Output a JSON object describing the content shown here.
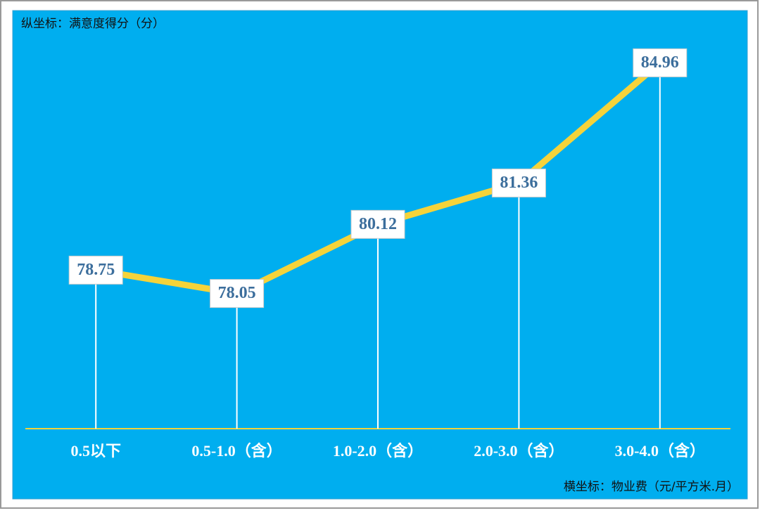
{
  "chart_data": {
    "type": "line",
    "y_axis_label": "纵坐标：满意度得分（分）",
    "x_axis_label": "横坐标：物业费（元/平方米.月）",
    "categories": [
      "0.5以下",
      "0.5-1.0（含）",
      "1.0-2.0（含）",
      "2.0-3.0（含）",
      "3.0-4.0（含）"
    ],
    "values": [
      78.75,
      78.05,
      80.12,
      81.36,
      84.96
    ],
    "color": "#f5d33a",
    "ylim": [
      74,
      86
    ]
  }
}
